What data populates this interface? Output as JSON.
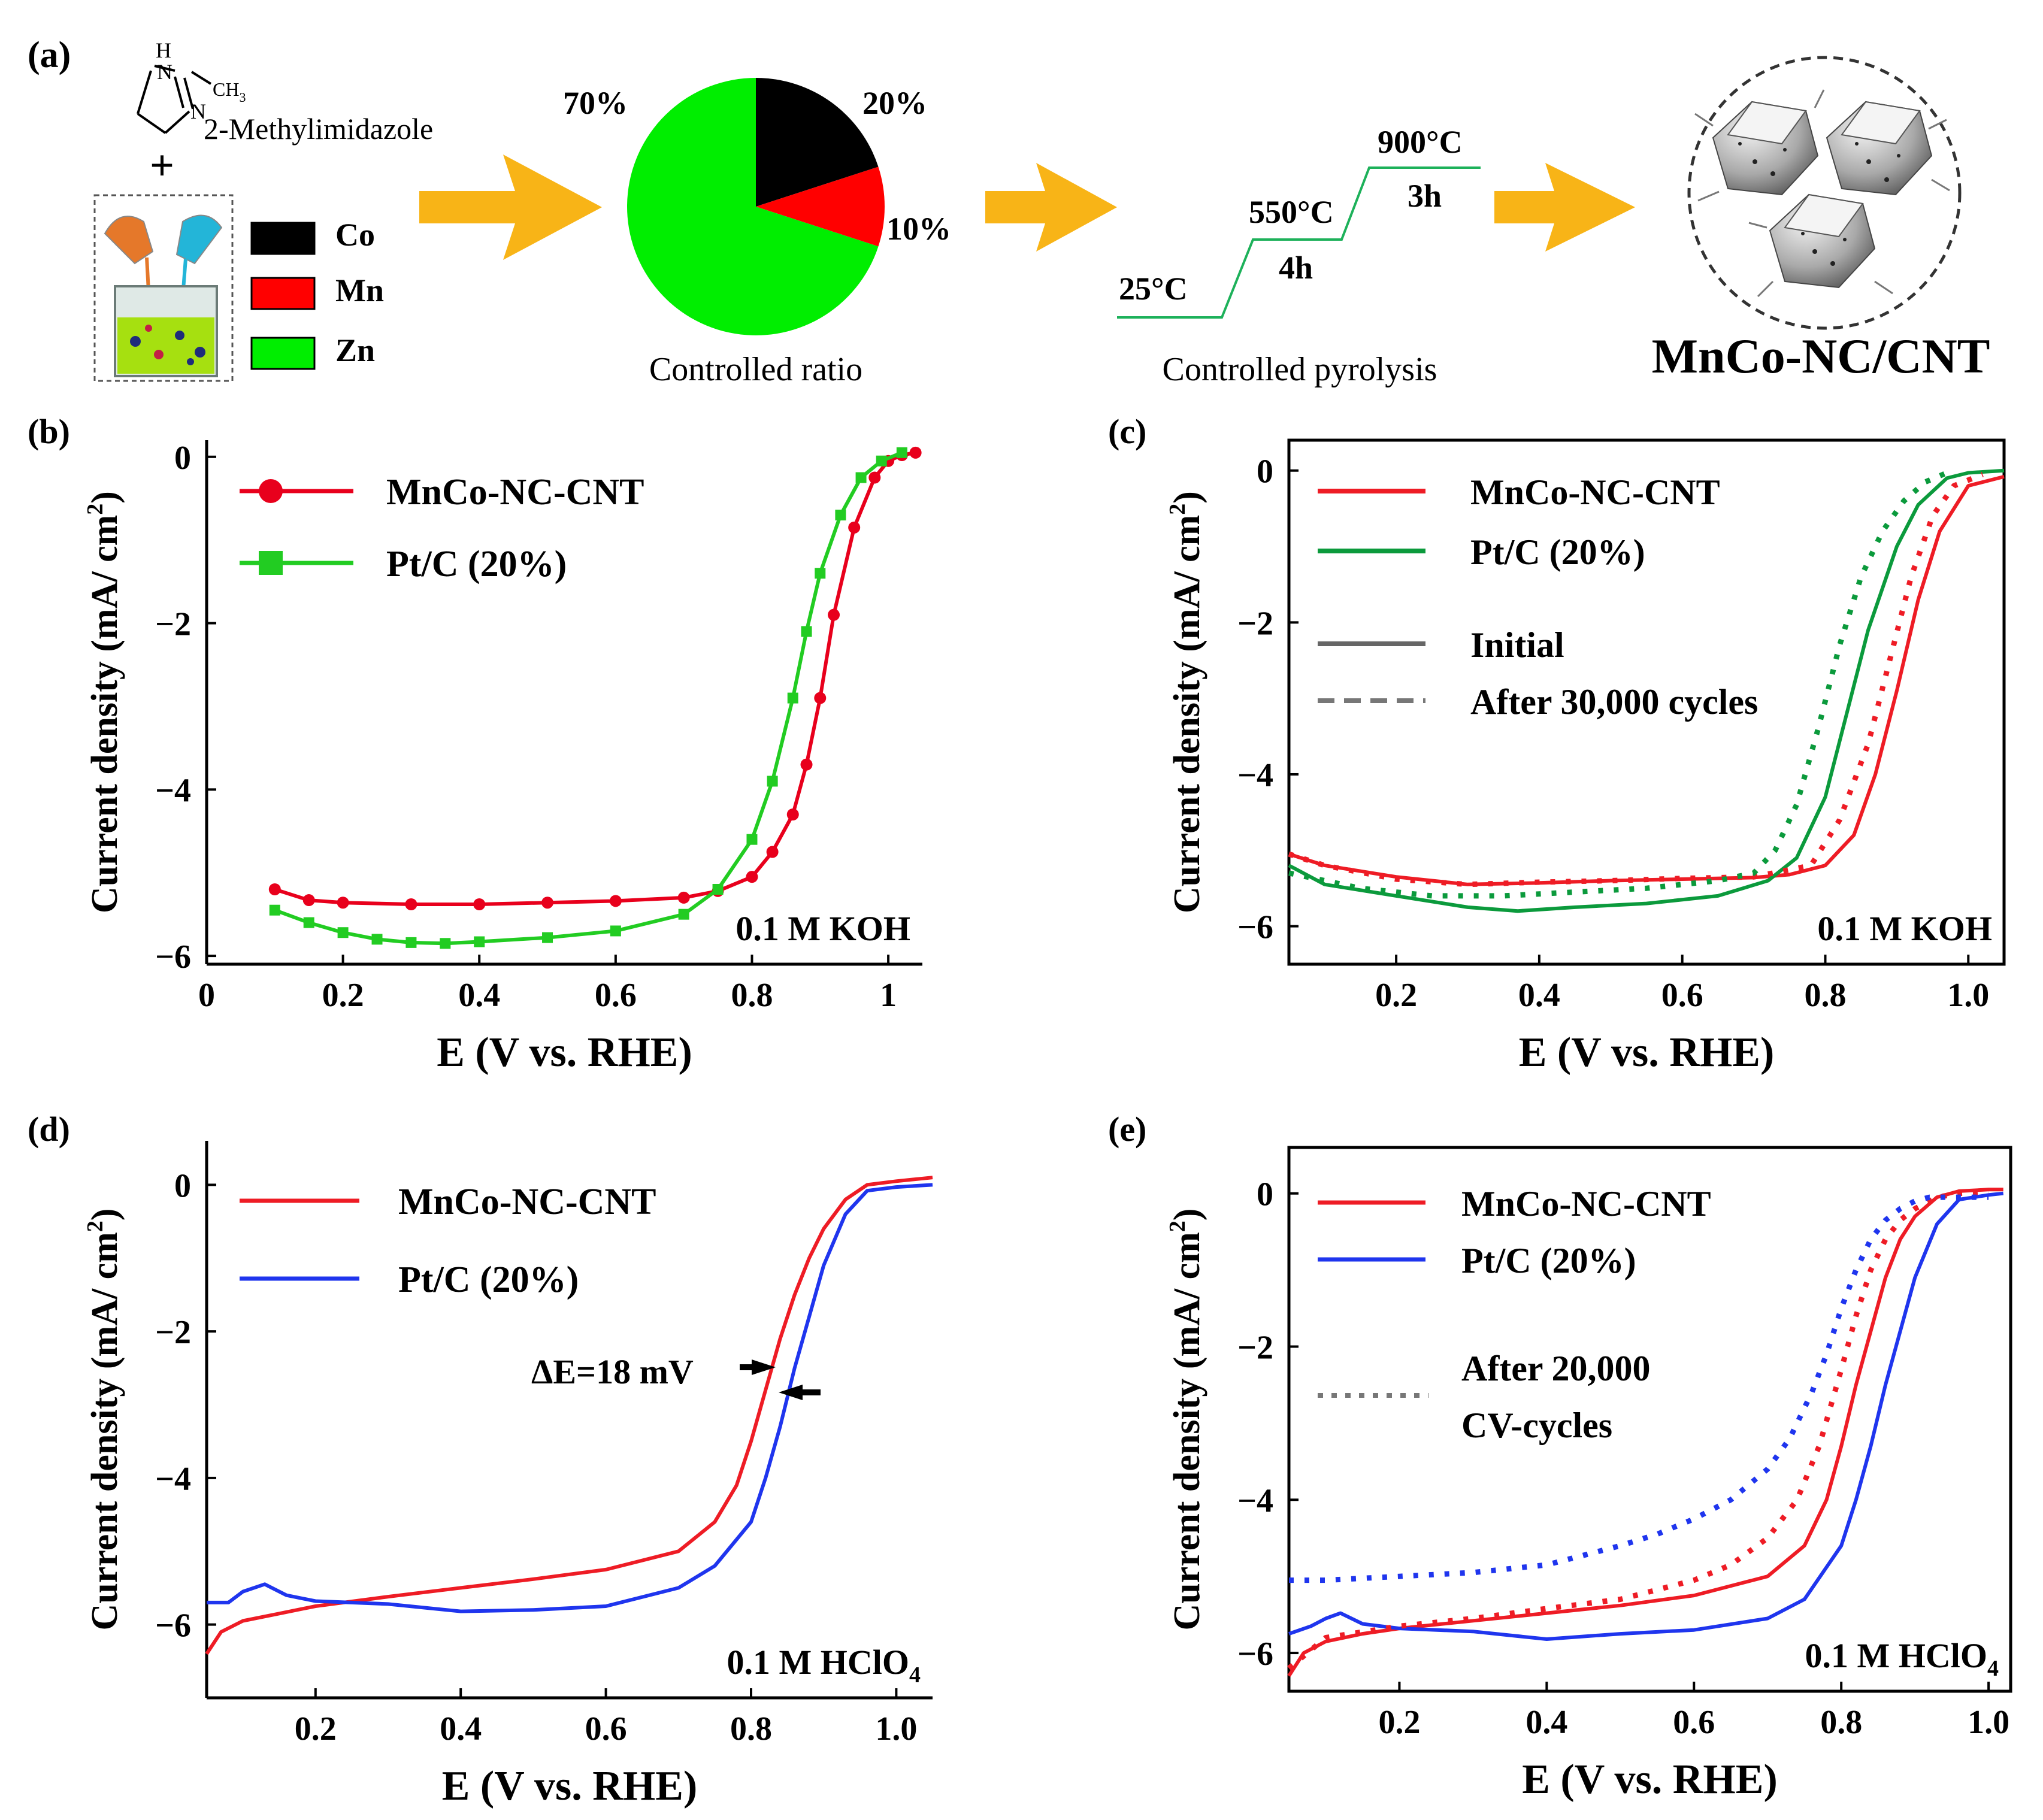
{
  "panel_a": {
    "label": "(a)",
    "methylimidazole": {
      "nh": "H",
      "n1": "N",
      "n2": "N",
      "ch3": "CH",
      "ch3_sub": "3",
      "name": "2-Methylimidazole"
    },
    "plus": "+",
    "legend": [
      {
        "label": "Co",
        "color": "#000000"
      },
      {
        "label": "Mn",
        "color": "#ff0000"
      },
      {
        "label": "Zn",
        "color": "#00ee00"
      }
    ],
    "pie": {
      "slices": [
        {
          "label": "Co",
          "value": 20,
          "color": "#000000"
        },
        {
          "label": "Mn",
          "value": 10,
          "color": "#ff0000"
        },
        {
          "label": "Zn",
          "value": 70,
          "color": "#00ee00"
        }
      ],
      "labels": {
        "co": "20%",
        "mn": "10%",
        "zn": "70%"
      },
      "caption": "Controlled ratio"
    },
    "pyrolysis": {
      "t1": "25°C",
      "t2": "550°C",
      "d2": "4h",
      "t3": "900°C",
      "d3": "3h",
      "caption": "Controlled pyrolysis",
      "line_color": "#1db15a"
    },
    "product": "MnCo-NC/CNT",
    "arrow_color": "#f8b417"
  },
  "chart_data": [
    {
      "panel": "(b)",
      "type": "line",
      "xlabel": "E (V vs. RHE)",
      "ylabel": "Current density (mA/ cm²)",
      "xlim": [
        0,
        1.05
      ],
      "ylim": [
        -6.1,
        0.2
      ],
      "xticks": [
        "0",
        "0.2",
        "0.4",
        "0.6",
        "0.8",
        "1"
      ],
      "yticks": [
        "0",
        "−2",
        "−4",
        "−6"
      ],
      "annotation": "0.1 M KOH",
      "series": [
        {
          "name": "MnCo-NC-CNT",
          "color": "#e8001c",
          "marker": "circle",
          "x": [
            0.1,
            0.15,
            0.2,
            0.3,
            0.4,
            0.5,
            0.6,
            0.7,
            0.75,
            0.8,
            0.83,
            0.86,
            0.88,
            0.9,
            0.92,
            0.95,
            0.98,
            1.0,
            1.02,
            1.04
          ],
          "y": [
            -5.2,
            -5.33,
            -5.36,
            -5.38,
            -5.38,
            -5.36,
            -5.34,
            -5.3,
            -5.22,
            -5.05,
            -4.75,
            -4.3,
            -3.7,
            -2.9,
            -1.9,
            -0.85,
            -0.25,
            -0.05,
            0.02,
            0.05
          ]
        },
        {
          "name": "Pt/C (20%)",
          "color": "#22cc22",
          "marker": "square",
          "x": [
            0.1,
            0.15,
            0.2,
            0.25,
            0.3,
            0.35,
            0.4,
            0.5,
            0.6,
            0.7,
            0.75,
            0.8,
            0.83,
            0.86,
            0.88,
            0.9,
            0.93,
            0.96,
            0.99,
            1.02
          ],
          "y": [
            -5.45,
            -5.6,
            -5.72,
            -5.8,
            -5.84,
            -5.85,
            -5.83,
            -5.78,
            -5.7,
            -5.5,
            -5.2,
            -4.6,
            -3.9,
            -2.9,
            -2.1,
            -1.4,
            -0.7,
            -0.25,
            -0.05,
            0.05
          ]
        }
      ]
    },
    {
      "panel": "(c)",
      "type": "line",
      "xlabel": "E (V vs. RHE)",
      "ylabel": "Current density (mA/ cm²)",
      "xlim": [
        0.05,
        1.05
      ],
      "ylim": [
        -6.5,
        0.4
      ],
      "xticks": [
        "0.2",
        "0.4",
        "0.6",
        "0.8",
        "1.0"
      ],
      "yticks": [
        "0",
        "−2",
        "−4",
        "−6"
      ],
      "annotation": "0.1 M KOH",
      "legend": [
        "MnCo-NC-CNT",
        "Pt/C (20%)",
        "Initial",
        "After 30,000 cycles"
      ],
      "series": [
        {
          "name": "MnCo-NC-CNT",
          "state": "Initial",
          "color": "#ee1c25",
          "style": "solid",
          "x": [
            0.05,
            0.1,
            0.2,
            0.3,
            0.4,
            0.5,
            0.6,
            0.7,
            0.75,
            0.8,
            0.84,
            0.87,
            0.9,
            0.93,
            0.96,
            1.0,
            1.05
          ],
          "y": [
            -5.05,
            -5.2,
            -5.35,
            -5.45,
            -5.43,
            -5.4,
            -5.38,
            -5.36,
            -5.32,
            -5.2,
            -4.8,
            -4.0,
            -2.9,
            -1.7,
            -0.8,
            -0.2,
            -0.08
          ]
        },
        {
          "name": "Pt/C (20%)",
          "state": "Initial",
          "color": "#0b9a3c",
          "style": "solid",
          "x": [
            0.05,
            0.1,
            0.2,
            0.3,
            0.37,
            0.45,
            0.55,
            0.65,
            0.72,
            0.76,
            0.8,
            0.83,
            0.86,
            0.9,
            0.93,
            0.97,
            1.0,
            1.05
          ],
          "y": [
            -5.2,
            -5.45,
            -5.6,
            -5.75,
            -5.8,
            -5.75,
            -5.7,
            -5.6,
            -5.4,
            -5.1,
            -4.3,
            -3.2,
            -2.1,
            -1.0,
            -0.45,
            -0.1,
            -0.03,
            0.0
          ]
        },
        {
          "name": "MnCo-NC-CNT",
          "state": "After 30,000 cycles",
          "color": "#ee1c25",
          "style": "dotted",
          "x": [
            0.05,
            0.1,
            0.2,
            0.3,
            0.4,
            0.5,
            0.6,
            0.7,
            0.78,
            0.82,
            0.86,
            0.89,
            0.92,
            0.95,
            0.98,
            1.02
          ],
          "y": [
            -5.05,
            -5.2,
            -5.38,
            -5.45,
            -5.42,
            -5.4,
            -5.37,
            -5.35,
            -5.2,
            -4.6,
            -3.6,
            -2.5,
            -1.4,
            -0.6,
            -0.2,
            -0.05
          ]
        },
        {
          "name": "Pt/C (20%)",
          "state": "After 30,000 cycles",
          "color": "#0b9a3c",
          "style": "dotted",
          "x": [
            0.05,
            0.15,
            0.25,
            0.35,
            0.45,
            0.55,
            0.65,
            0.7,
            0.73,
            0.76,
            0.79,
            0.82,
            0.85,
            0.88,
            0.91,
            0.94,
            0.97
          ],
          "y": [
            -5.3,
            -5.5,
            -5.6,
            -5.6,
            -5.55,
            -5.5,
            -5.4,
            -5.3,
            -5.0,
            -4.4,
            -3.4,
            -2.3,
            -1.4,
            -0.8,
            -0.4,
            -0.15,
            -0.03
          ]
        }
      ]
    },
    {
      "panel": "(d)",
      "type": "line",
      "xlabel": "E (V vs. RHE)",
      "ylabel": "Current density (mA/ cm²)",
      "xlim": [
        0.05,
        1.05
      ],
      "ylim": [
        -7.0,
        0.6
      ],
      "xticks": [
        "0.2",
        "0.4",
        "0.6",
        "0.8",
        "1.0"
      ],
      "yticks": [
        "0",
        "−2",
        "−4",
        "−6"
      ],
      "annotation": "0.1 M HClO",
      "annotation_sub": "4",
      "delta_label": "ΔE=18 mV",
      "series": [
        {
          "name": "MnCo-NC-CNT",
          "color": "#ee1c25",
          "x": [
            0.05,
            0.07,
            0.1,
            0.15,
            0.2,
            0.3,
            0.4,
            0.5,
            0.6,
            0.7,
            0.75,
            0.78,
            0.8,
            0.82,
            0.84,
            0.86,
            0.88,
            0.9,
            0.93,
            0.96,
            1.0,
            1.05
          ],
          "y": [
            -6.4,
            -6.1,
            -5.95,
            -5.85,
            -5.75,
            -5.62,
            -5.5,
            -5.38,
            -5.25,
            -5.0,
            -4.6,
            -4.1,
            -3.5,
            -2.8,
            -2.1,
            -1.5,
            -1.0,
            -0.6,
            -0.2,
            0.0,
            0.05,
            0.1
          ]
        },
        {
          "name": "Pt/C (20%)",
          "color": "#1f35ee",
          "x": [
            0.05,
            0.08,
            0.1,
            0.13,
            0.16,
            0.2,
            0.3,
            0.4,
            0.5,
            0.6,
            0.7,
            0.75,
            0.8,
            0.82,
            0.84,
            0.86,
            0.88,
            0.9,
            0.93,
            0.96,
            1.0,
            1.05
          ],
          "y": [
            -5.7,
            -5.7,
            -5.55,
            -5.45,
            -5.6,
            -5.68,
            -5.72,
            -5.82,
            -5.8,
            -5.75,
            -5.5,
            -5.2,
            -4.6,
            -4.0,
            -3.3,
            -2.5,
            -1.8,
            -1.1,
            -0.4,
            -0.08,
            -0.03,
            0.0
          ]
        }
      ]
    },
    {
      "panel": "(e)",
      "type": "line",
      "xlabel": "E (V vs. RHE)",
      "ylabel": "Current density (mA/ cm²)",
      "xlim": [
        0.05,
        1.03
      ],
      "ylim": [
        -6.5,
        0.6
      ],
      "xticks": [
        "0.2",
        "0.4",
        "0.6",
        "0.8",
        "1.0"
      ],
      "yticks": [
        "0",
        "−2",
        "−4",
        "−6"
      ],
      "annotation": "0.1 M HClO",
      "annotation_sub": "4",
      "legend": [
        "MnCo-NC-CNT",
        "Pt/C (20%)"
      ],
      "dotted_legend": [
        "After 20,000",
        "CV-cycles"
      ],
      "series": [
        {
          "name": "MnCo-NC-CNT",
          "state": "Initial",
          "color": "#ee1c25",
          "style": "solid",
          "x": [
            0.05,
            0.07,
            0.1,
            0.15,
            0.2,
            0.3,
            0.4,
            0.5,
            0.6,
            0.7,
            0.75,
            0.78,
            0.8,
            0.82,
            0.84,
            0.86,
            0.88,
            0.9,
            0.93,
            0.96,
            1.0,
            1.02
          ],
          "y": [
            -6.3,
            -6.0,
            -5.85,
            -5.75,
            -5.68,
            -5.58,
            -5.48,
            -5.38,
            -5.25,
            -5.0,
            -4.6,
            -4.0,
            -3.3,
            -2.5,
            -1.8,
            -1.1,
            -0.6,
            -0.3,
            -0.05,
            0.03,
            0.05,
            0.05
          ]
        },
        {
          "name": "Pt/C (20%)",
          "state": "Initial",
          "color": "#1f35ee",
          "style": "solid",
          "x": [
            0.05,
            0.08,
            0.1,
            0.12,
            0.15,
            0.2,
            0.3,
            0.4,
            0.5,
            0.6,
            0.7,
            0.75,
            0.8,
            0.82,
            0.84,
            0.86,
            0.88,
            0.9,
            0.93,
            0.96,
            1.0,
            1.02
          ],
          "y": [
            -5.75,
            -5.65,
            -5.55,
            -5.48,
            -5.62,
            -5.68,
            -5.72,
            -5.82,
            -5.75,
            -5.7,
            -5.55,
            -5.3,
            -4.6,
            -4.0,
            -3.3,
            -2.5,
            -1.8,
            -1.1,
            -0.4,
            -0.08,
            -0.02,
            0.0
          ]
        },
        {
          "name": "MnCo-NC-CNT",
          "state": "After 20,000 CV-cycles",
          "color": "#ee1c25",
          "style": "dotted",
          "x": [
            0.05,
            0.1,
            0.2,
            0.3,
            0.4,
            0.5,
            0.6,
            0.65,
            0.7,
            0.74,
            0.77,
            0.8,
            0.82,
            0.84,
            0.86,
            0.88,
            0.9,
            0.93,
            0.96,
            1.0
          ],
          "y": [
            -6.2,
            -5.8,
            -5.65,
            -5.55,
            -5.42,
            -5.3,
            -5.05,
            -4.85,
            -4.5,
            -4.0,
            -3.3,
            -2.3,
            -1.6,
            -1.0,
            -0.6,
            -0.35,
            -0.2,
            -0.05,
            0.0,
            0.02
          ]
        },
        {
          "name": "Pt/C (20%)",
          "state": "After 20,000 CV-cycles",
          "color": "#1f35ee",
          "style": "dotted",
          "x": [
            0.05,
            0.1,
            0.2,
            0.3,
            0.4,
            0.5,
            0.55,
            0.6,
            0.65,
            0.7,
            0.73,
            0.76,
            0.78,
            0.8,
            0.82,
            0.84,
            0.86,
            0.88,
            0.9,
            0.92,
            0.95,
            1.0
          ],
          "y": [
            -5.05,
            -5.05,
            -5.0,
            -4.95,
            -4.85,
            -4.6,
            -4.45,
            -4.25,
            -4.0,
            -3.6,
            -3.2,
            -2.6,
            -2.1,
            -1.5,
            -1.0,
            -0.6,
            -0.35,
            -0.2,
            -0.1,
            -0.05,
            -0.05,
            -0.05
          ]
        }
      ]
    }
  ]
}
